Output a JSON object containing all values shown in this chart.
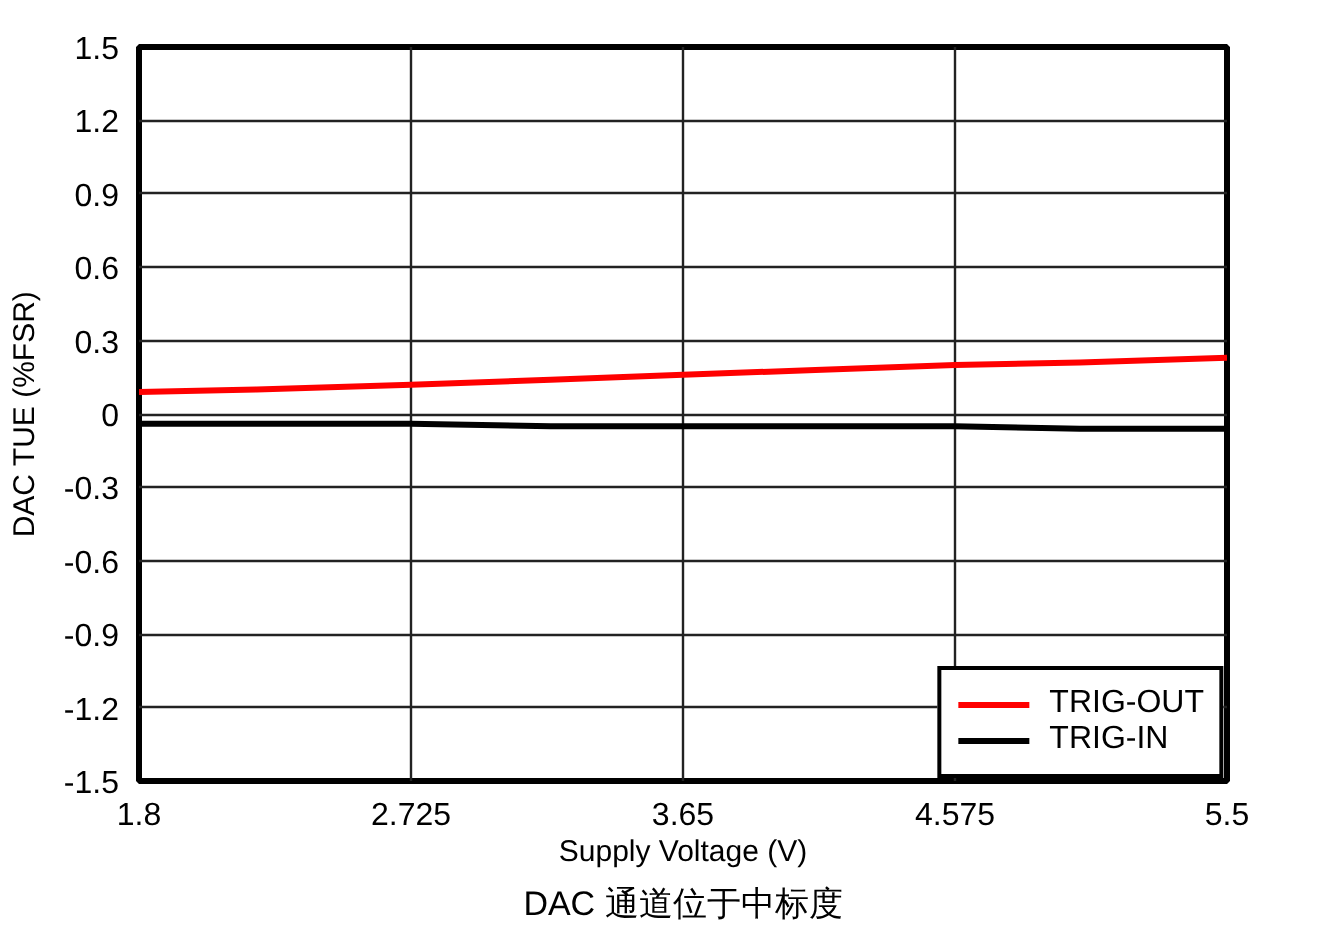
{
  "chart_data": {
    "type": "line",
    "xlabel": "Supply Voltage (V)",
    "ylabel": "DAC TUE (%FSR)",
    "annotations": [
      "DAC 通道位于中标度"
    ],
    "x": [
      1.8,
      2.2,
      2.725,
      3.2,
      3.65,
      4.1,
      4.575,
      5.0,
      5.5
    ],
    "series": [
      {
        "name": "TRIG-OUT",
        "color": "#ff0000",
        "values": [
          0.09,
          0.1,
          0.12,
          0.14,
          0.16,
          0.18,
          0.2,
          0.21,
          0.23
        ]
      },
      {
        "name": "TRIG-IN",
        "color": "#000000",
        "values": [
          -0.04,
          -0.04,
          -0.04,
          -0.05,
          -0.05,
          -0.05,
          -0.05,
          -0.06,
          -0.06
        ]
      }
    ],
    "xlim": [
      1.8,
      5.5
    ],
    "xticks": [
      1.8,
      2.725,
      3.65,
      4.575,
      5.5
    ],
    "ylim": [
      -1.5,
      1.5
    ],
    "yticks": [
      -1.5,
      -1.2,
      -0.9,
      -0.6,
      -0.3,
      0,
      0.3,
      0.6,
      0.9,
      1.2,
      1.5
    ],
    "grid": true,
    "legend": "bottom right",
    "marker": "none",
    "line_style": "solid"
  }
}
